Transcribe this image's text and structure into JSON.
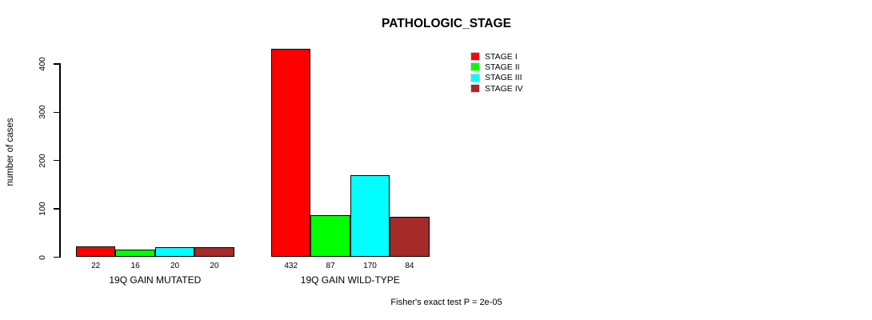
{
  "chart_data": {
    "type": "bar",
    "title": "PATHOLOGIC_STAGE",
    "ylabel": "number of cases",
    "xlabel": "",
    "categories": [
      "19Q GAIN MUTATED",
      "19Q GAIN WILD-TYPE"
    ],
    "series": [
      {
        "name": "STAGE I",
        "color": "#ff0000",
        "values": [
          22,
          432
        ]
      },
      {
        "name": "STAGE II",
        "color": "#00ff00",
        "values": [
          16,
          87
        ]
      },
      {
        "name": "STAGE III",
        "color": "#00ffff",
        "values": [
          20,
          170
        ]
      },
      {
        "name": "STAGE IV",
        "color": "#a52a2a",
        "values": [
          20,
          84
        ]
      }
    ],
    "bar_value_labels": [
      [
        22,
        16,
        20,
        20
      ],
      [
        432,
        87,
        170,
        84
      ]
    ],
    "yticks": [
      0,
      100,
      200,
      300,
      400
    ],
    "ylim": [
      0,
      440
    ],
    "grid": false,
    "legend_position": "top-right",
    "bar_border_color": "#000000",
    "annotation": "Fisher's exact test P = 2e-05"
  }
}
